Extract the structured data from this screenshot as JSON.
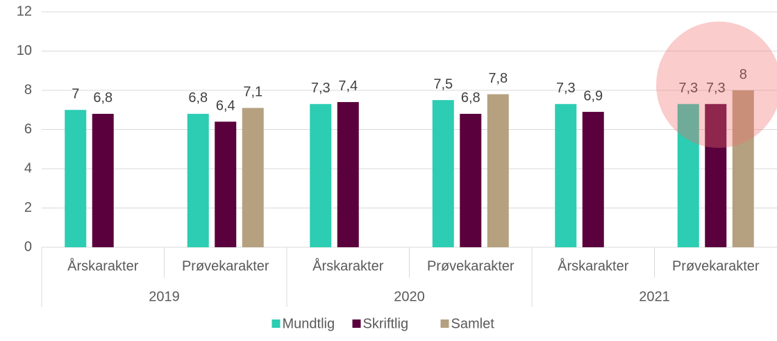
{
  "chart_data": {
    "type": "bar",
    "categories": [
      "Årskarakter",
      "Prøvekarakter",
      "Årskarakter",
      "Prøvekarakter",
      "Årskarakter",
      "Prøvekarakter"
    ],
    "groups": [
      "2019",
      "2020",
      "2021"
    ],
    "series": [
      {
        "name": "Mundtlig",
        "color": "#2ccdb2",
        "values": [
          7,
          6.8,
          7.3,
          7.5,
          7.3,
          7.3
        ],
        "value_labels": [
          "7",
          "6,8",
          "7,3",
          "7,5",
          "7,3",
          "7,3"
        ]
      },
      {
        "name": "Skriftlig",
        "color": "#5a003c",
        "values": [
          6.8,
          6.4,
          7.4,
          6.8,
          6.9,
          7.3
        ],
        "value_labels": [
          "6,8",
          "6,4",
          "7,4",
          "6,8",
          "6,9",
          "7,3"
        ]
      },
      {
        "name": "Samlet",
        "color": "#b5a180",
        "values": [
          null,
          7.1,
          null,
          7.8,
          null,
          8
        ],
        "value_labels": [
          null,
          "7,1",
          null,
          "7,8",
          null,
          "8"
        ]
      }
    ],
    "ylim": [
      0,
      12
    ],
    "yticks": [
      0,
      2,
      4,
      6,
      8,
      10,
      12
    ],
    "grid": true,
    "legend": "bottom"
  }
}
